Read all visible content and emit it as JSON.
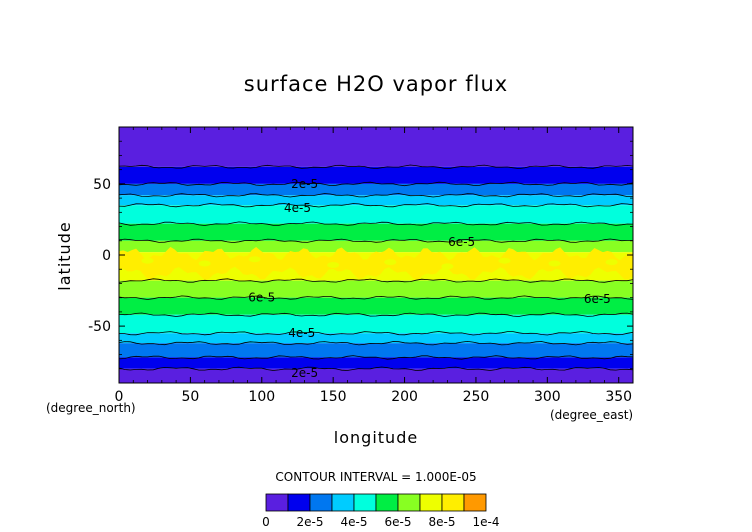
{
  "chart_data": {
    "type": "contour",
    "title": "surface H2O vapor flux",
    "xlabel": "longitude",
    "ylabel": "latitude",
    "x_units": "(degree_east)",
    "y_units": "(degree_north)",
    "xlim": [
      0,
      360
    ],
    "ylim": [
      -90,
      90
    ],
    "x_ticks": [
      0,
      50,
      100,
      150,
      200,
      250,
      300,
      350
    ],
    "y_ticks": [
      -50,
      0,
      50
    ],
    "contour_interval_text": "CONTOUR INTERVAL = 1.000E-05",
    "contour_interval": 1e-05,
    "colorbar": {
      "levels": [
        0,
        1e-05,
        2e-05,
        3e-05,
        4e-05,
        5e-05,
        6e-05,
        7e-05,
        8e-05,
        9e-05,
        0.0001
      ],
      "colors": [
        "#8a0fd0",
        "#5a1fe0",
        "#0000ee",
        "#0077f0",
        "#00ccff",
        "#00ffdd",
        "#00ee44",
        "#88ff22",
        "#eeff00",
        "#ffee00",
        "#ff9900",
        "#ff0000",
        "#ff9999"
      ],
      "tick_labels": [
        "0",
        "2e-5",
        "4e-5",
        "6e-5",
        "8e-5",
        "1e-4"
      ]
    },
    "zonal_bands": [
      {
        "lat": [
          62,
          90
        ],
        "value": 5e-06
      },
      {
        "lat": [
          50,
          62
        ],
        "value": 1.5e-05
      },
      {
        "lat": [
          42,
          50
        ],
        "value": 2.5e-05
      },
      {
        "lat": [
          35,
          42
        ],
        "value": 3.5e-05
      },
      {
        "lat": [
          22,
          35
        ],
        "value": 4.5e-05
      },
      {
        "lat": [
          10,
          22
        ],
        "value": 5.5e-05
      },
      {
        "lat": [
          2,
          10
        ],
        "value": 6.5e-05
      },
      {
        "lat": [
          -18,
          2
        ],
        "value": 7.5e-05
      },
      {
        "lat": [
          -30,
          -18
        ],
        "value": 6.5e-05
      },
      {
        "lat": [
          -42,
          -30
        ],
        "value": 5.5e-05
      },
      {
        "lat": [
          -55,
          -42
        ],
        "value": 4.5e-05
      },
      {
        "lat": [
          -62,
          -55
        ],
        "value": 3.5e-05
      },
      {
        "lat": [
          -72,
          -62
        ],
        "value": 2.5e-05
      },
      {
        "lat": [
          -80,
          -72
        ],
        "value": 1.5e-05
      },
      {
        "lat": [
          -90,
          -80
        ],
        "value": 5e-06
      }
    ],
    "contour_labels": [
      {
        "text": "2e-5",
        "lon": 130,
        "lat": 50
      },
      {
        "text": "4e-5",
        "lon": 125,
        "lat": 33
      },
      {
        "text": "6e-5",
        "lon": 240,
        "lat": 9
      },
      {
        "text": "6e-5",
        "lon": 100,
        "lat": -30
      },
      {
        "text": "6e-5",
        "lon": 335,
        "lat": -31
      },
      {
        "text": "4e-5",
        "lon": 128,
        "lat": -55
      },
      {
        "text": "2e-5",
        "lon": 130,
        "lat": -83
      }
    ]
  }
}
